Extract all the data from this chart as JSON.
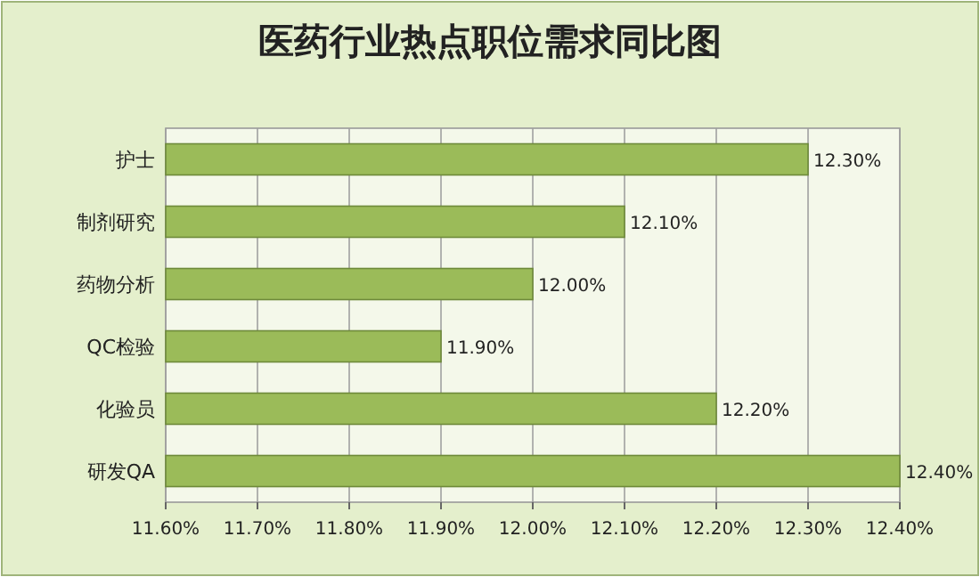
{
  "chart_data": {
    "type": "bar",
    "orientation": "horizontal",
    "title": "医药行业热点职位需求同比图",
    "categories": [
      "护士",
      "制剂研究",
      "药物分析",
      "QC检验",
      "化验员",
      "研发QA"
    ],
    "values": [
      12.3,
      12.1,
      12.0,
      11.9,
      12.2,
      12.4
    ],
    "value_labels": [
      "12.30%",
      "12.10%",
      "12.00%",
      "11.90%",
      "12.20%",
      "12.40%"
    ],
    "color": "#9bbb59",
    "xlim": [
      11.6,
      12.4
    ],
    "xticks": [
      {
        "value": 11.6,
        "label": "11.60%"
      },
      {
        "value": 11.7,
        "label": "11.70%"
      },
      {
        "value": 11.8,
        "label": "11.80%"
      },
      {
        "value": 11.9,
        "label": "11.90%"
      },
      {
        "value": 12.0,
        "label": "12.00%"
      },
      {
        "value": 12.1,
        "label": "12.10%"
      },
      {
        "value": 12.2,
        "label": "12.20%"
      },
      {
        "value": 12.3,
        "label": "12.30%"
      },
      {
        "value": 12.4,
        "label": "12.40%"
      }
    ],
    "grid": "x"
  }
}
